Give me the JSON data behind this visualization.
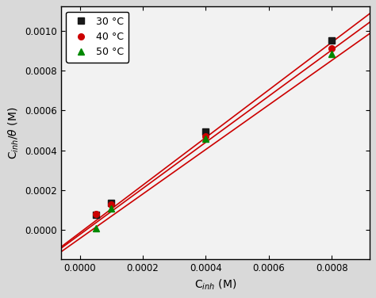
{
  "xlabel": "C$_{inh}$ (M)",
  "ylabel": "C$_{inh}$/$\\theta$ (M)",
  "xlim": [
    -6e-05,
    0.00092
  ],
  "ylim": [
    -0.000145,
    0.00112
  ],
  "series": [
    {
      "label": "30 °C",
      "marker": "s",
      "markercolor": "#1a1a1a",
      "markersize": 6,
      "x": [
        5e-05,
        0.0001,
        0.0004,
        0.0008
      ],
      "y": [
        7.5e-05,
        0.000135,
        0.000495,
        0.00095
      ],
      "fit_slope": 1.192,
      "fit_intercept": -1.3e-05
    },
    {
      "label": "40 °C",
      "marker": "o",
      "markercolor": "#cc0000",
      "markersize": 6,
      "x": [
        5e-05,
        0.0001,
        0.0004,
        0.0008
      ],
      "y": [
        8e-05,
        0.00013,
        0.00047,
        0.00091
      ],
      "fit_slope": 1.155,
      "fit_intercept": -2.2e-05
    },
    {
      "label": "50 °C",
      "marker": "^",
      "markercolor": "#008800",
      "markersize": 6,
      "x": [
        5e-05,
        0.0001,
        0.0004,
        0.0008
      ],
      "y": [
        1e-05,
        0.00011,
        0.00046,
        0.000885
      ],
      "fit_slope": 1.115,
      "fit_intercept": -4.2e-05
    }
  ],
  "line_color": "#cc0000",
  "xticks": [
    0.0,
    0.0002,
    0.0004,
    0.0006,
    0.0008
  ],
  "yticks": [
    0.0,
    0.0002,
    0.0004,
    0.0006,
    0.0008,
    0.001
  ],
  "bg_color": "#e8e8e8",
  "plot_bg_color": "#f0f0f0",
  "figsize": [
    4.74,
    3.76
  ],
  "dpi": 100
}
